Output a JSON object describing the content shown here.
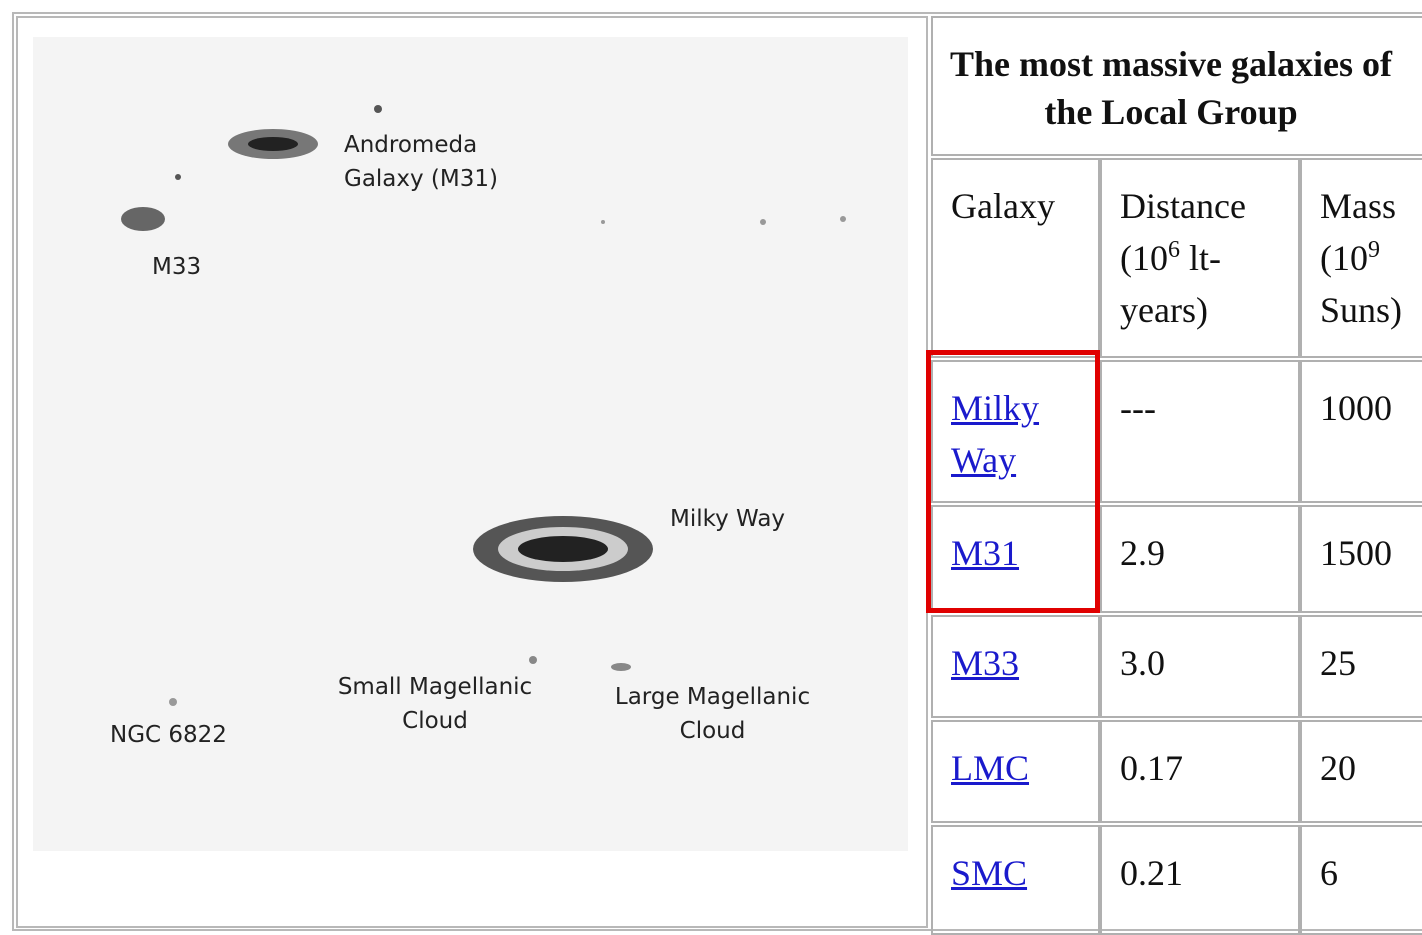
{
  "image": {
    "labels": [
      "Andromeda Galaxy (M31)",
      "M33",
      "Milky Way",
      "Small Magellanic Cloud",
      "Large Magellanic Cloud",
      "NGC 6822"
    ]
  },
  "table": {
    "title": "The most massive galaxies of the Local Group",
    "header": [
      {
        "text": "Galaxy"
      },
      {
        "text": "Distance (10",
        "sup": "6",
        "tail": " lt-years)"
      },
      {
        "text": "Mass (10",
        "sup": "9",
        "tail": " Suns)"
      }
    ],
    "rows": [
      [
        "Milky Way",
        "---",
        "1000"
      ],
      [
        "M31",
        "2.9",
        "1500"
      ],
      [
        "M33",
        "3.0",
        "25"
      ],
      [
        "LMC",
        "0.17",
        "20"
      ],
      [
        "SMC",
        "0.21",
        "6"
      ]
    ]
  }
}
